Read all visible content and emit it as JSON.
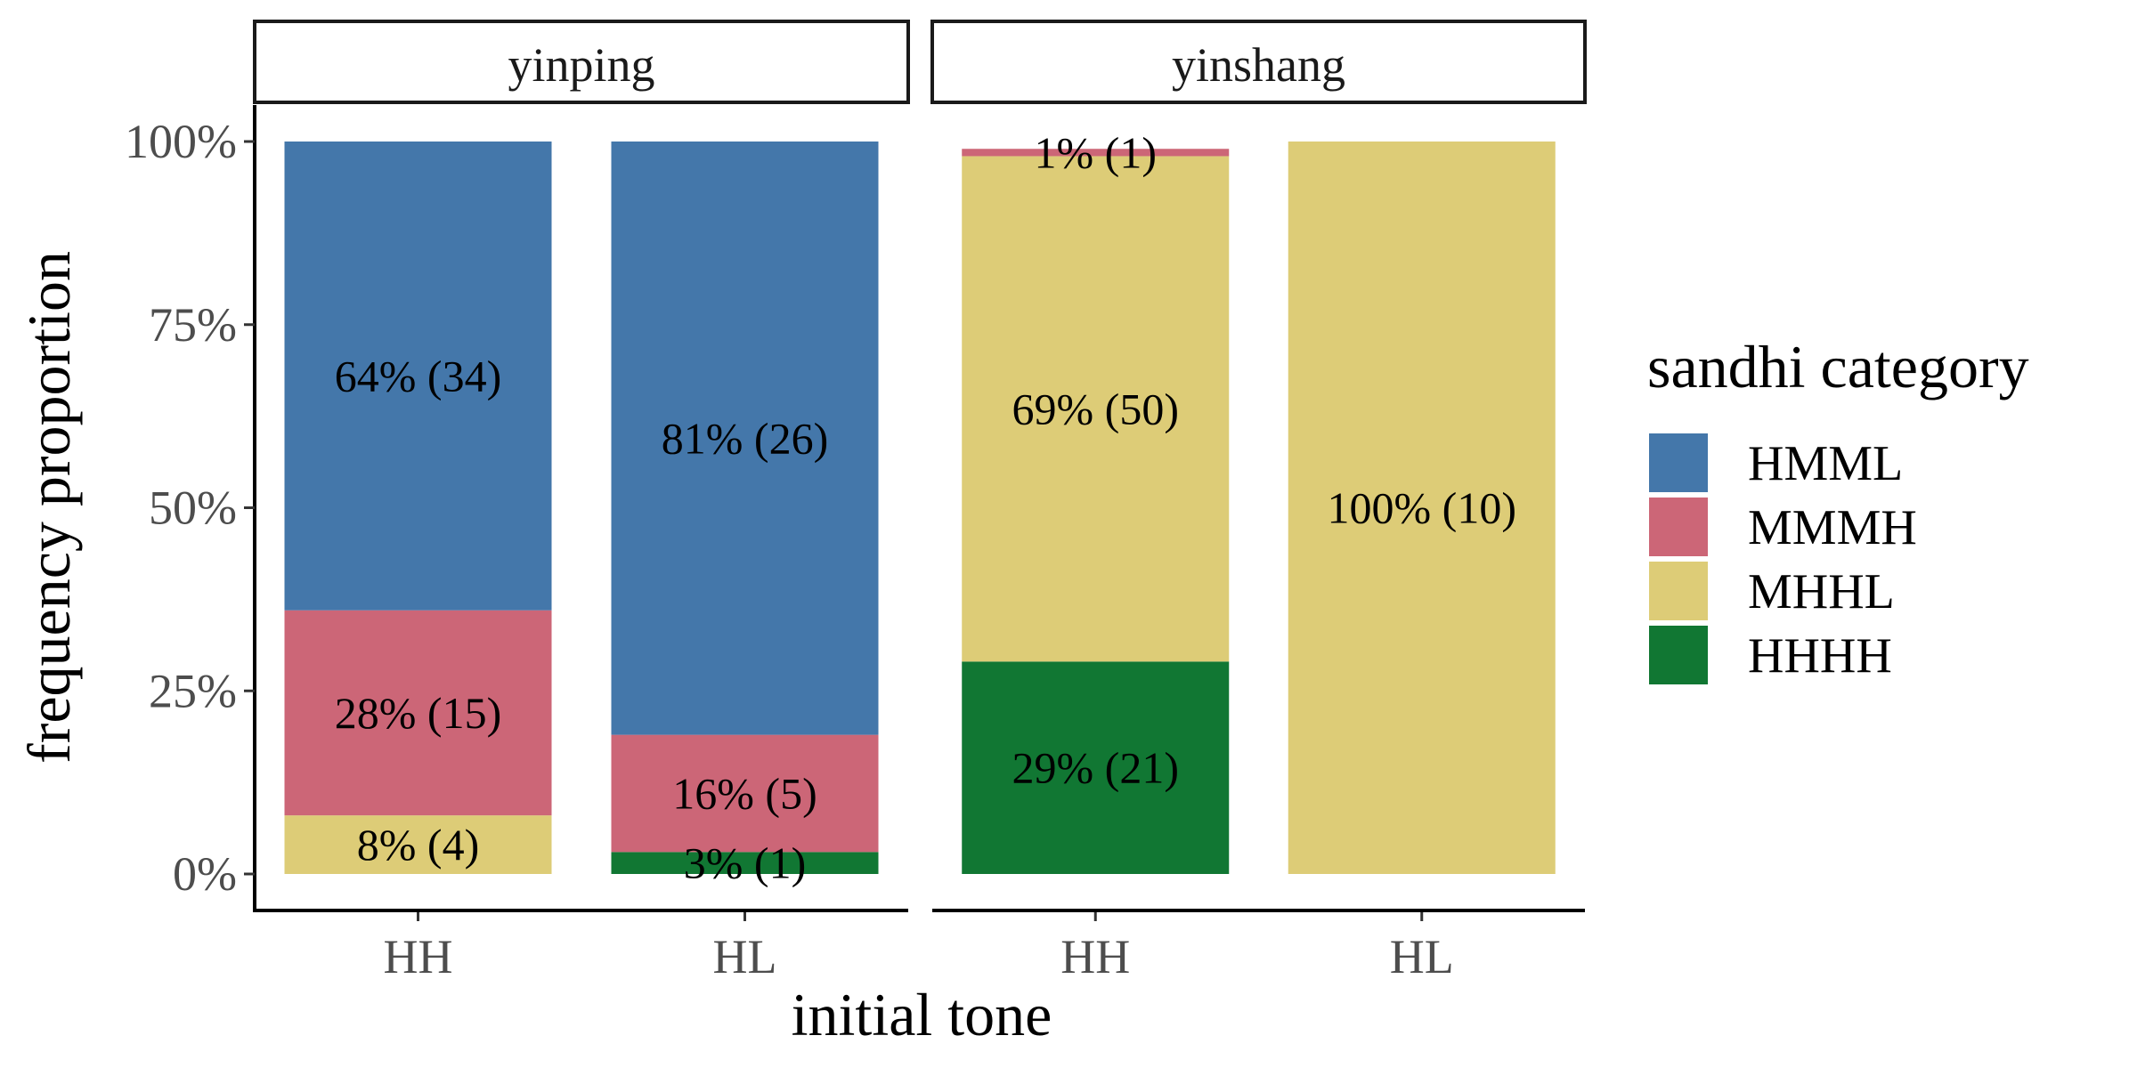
{
  "chart_data": {
    "type": "bar",
    "stacked": true,
    "normalized": true,
    "xlabel": "initial tone",
    "ylabel": "frequency proportion",
    "ylim": [
      0,
      1
    ],
    "yticks": [
      {
        "value": 0,
        "label": "0%"
      },
      {
        "value": 0.25,
        "label": "25%"
      },
      {
        "value": 0.5,
        "label": "50%"
      },
      {
        "value": 0.75,
        "label": "75%"
      },
      {
        "value": 1,
        "label": "100%"
      }
    ],
    "legend": {
      "title": "sandhi category",
      "placement": "right",
      "items": [
        {
          "name": "HMML",
          "color": "#4477AA"
        },
        {
          "name": "MMMH",
          "color": "#CC6677"
        },
        {
          "name": "MHHL",
          "color": "#DDCC77"
        },
        {
          "name": "HHHH",
          "color": "#117733"
        }
      ]
    },
    "stack_order_bottom_to_top": [
      "HHHH",
      "MHHL",
      "MMMH",
      "HMML"
    ],
    "facets": [
      {
        "label": "yinping",
        "categories": [
          "HH",
          "HL"
        ],
        "bars": [
          {
            "category": "HH",
            "segments": [
              {
                "series": "MHHL",
                "value": 0.08,
                "label": "8% (4)"
              },
              {
                "series": "MMMH",
                "value": 0.28,
                "label": "28% (15)"
              },
              {
                "series": "HMML",
                "value": 0.64,
                "label": "64% (34)"
              }
            ]
          },
          {
            "category": "HL",
            "segments": [
              {
                "series": "HHHH",
                "value": 0.03,
                "label": "3% (1)"
              },
              {
                "series": "MMMH",
                "value": 0.16,
                "label": "16% (5)"
              },
              {
                "series": "HMML",
                "value": 0.81,
                "label": "81% (26)"
              }
            ]
          }
        ]
      },
      {
        "label": "yinshang",
        "categories": [
          "HH",
          "HL"
        ],
        "bars": [
          {
            "category": "HH",
            "segments": [
              {
                "series": "HHHH",
                "value": 0.29,
                "label": "29% (21)"
              },
              {
                "series": "MHHL",
                "value": 0.69,
                "label": "69% (50)"
              },
              {
                "series": "MMMH",
                "value": 0.01,
                "label": "1% (1)"
              }
            ]
          },
          {
            "category": "HL",
            "segments": [
              {
                "series": "MHHL",
                "value": 1.0,
                "label": "100% (10)"
              }
            ]
          }
        ]
      }
    ]
  }
}
